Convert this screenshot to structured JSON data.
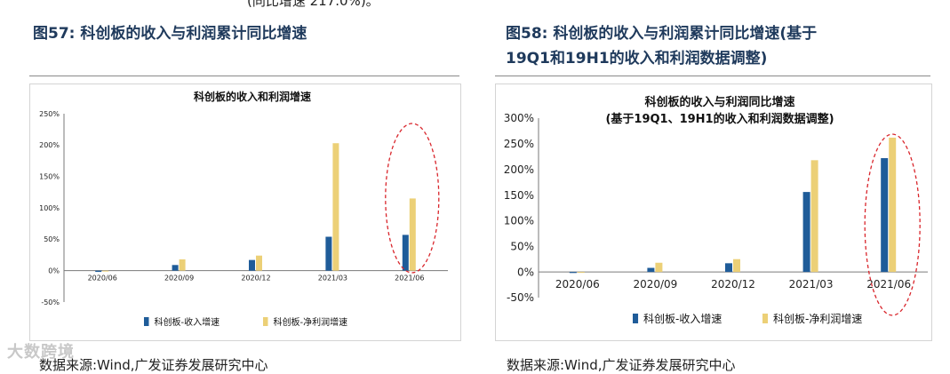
{
  "page": {
    "top_fragment": "(同比增速 217.0%)。",
    "watermark": "大数跨境"
  },
  "left": {
    "figure_title": "图57:  科创板的收入与利润累计同比增速",
    "source": "数据来源:Wind,广发证券发展研究中心"
  },
  "right": {
    "figure_title_line1": "图58:  科创板的收入与利润累计同比增速(基于",
    "figure_title_line2": "19Q1和19H1的收入和利润数据调整)",
    "source": "数据来源:Wind,广发证券发展研究中心"
  },
  "colors": {
    "revenue": "#1f5c99",
    "profit": "#ecd077",
    "highlight": "#d9262c",
    "title": "#1f3a5c"
  },
  "chart_data": [
    {
      "type": "bar",
      "title": "科创板的收入和利润增速",
      "categories": [
        "2020/06",
        "2020/09",
        "2020/12",
        "2021/03",
        "2021/06"
      ],
      "series": [
        {
          "name": "科创板-收入增速",
          "values": [
            -2,
            9,
            17,
            54,
            57
          ]
        },
        {
          "name": "科创板-净利润增速",
          "values": [
            -1,
            18,
            24,
            203,
            115
          ]
        }
      ],
      "ylim": [
        -50,
        250
      ],
      "yticks": [
        -50,
        0,
        50,
        100,
        150,
        200,
        250
      ],
      "ytick_labels": [
        "-50%",
        "0%",
        "50%",
        "100%",
        "150%",
        "200%",
        "250%"
      ],
      "legend": "bottom",
      "highlight": "2021/06"
    },
    {
      "type": "bar",
      "title": "科创板的收入与利润同比增速",
      "subtitle": "(基于19Q1、19H1的收入和利润数据调整)",
      "categories": [
        "2020/06",
        "2020/09",
        "2020/12",
        "2021/03",
        "2021/06"
      ],
      "series": [
        {
          "name": "科创板-收入增速",
          "values": [
            -2,
            8,
            17,
            156,
            222
          ]
        },
        {
          "name": "科创板-净利润增速",
          "values": [
            -1,
            18,
            25,
            218,
            262
          ]
        }
      ],
      "ylim": [
        -50,
        300
      ],
      "yticks": [
        -50,
        0,
        50,
        100,
        150,
        200,
        250,
        300
      ],
      "ytick_labels": [
        "-50%",
        "0%",
        "50%",
        "100%",
        "150%",
        "200%",
        "250%",
        "300%"
      ],
      "legend": "bottom",
      "highlight": "2021/06"
    }
  ]
}
